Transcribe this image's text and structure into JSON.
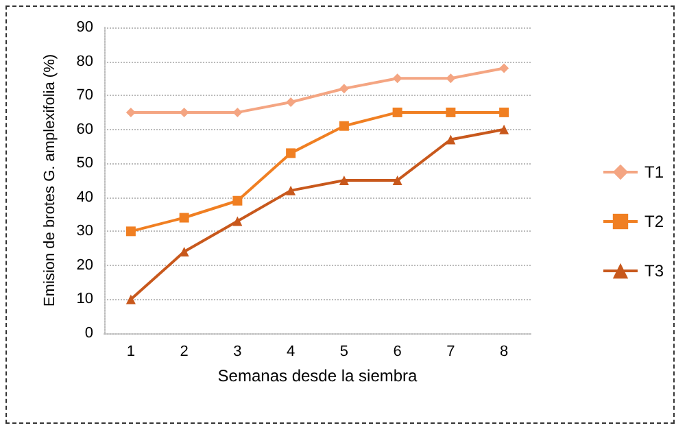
{
  "chart_data": {
    "type": "line",
    "xlabel": "Semanas desde la siembra",
    "ylabel": "Emision de brotes G. amplexifolia (%)",
    "categories": [
      "1",
      "2",
      "3",
      "4",
      "5",
      "6",
      "7",
      "8"
    ],
    "series": [
      {
        "name": "T1",
        "color": "#f4a582",
        "marker": "diamond",
        "values": [
          65,
          65,
          65,
          68,
          72,
          75,
          75,
          78
        ]
      },
      {
        "name": "T2",
        "color": "#f07f22",
        "marker": "square",
        "values": [
          30,
          34,
          39,
          53,
          61,
          65,
          65,
          65
        ]
      },
      {
        "name": "T3",
        "color": "#c8581c",
        "marker": "triangle",
        "values": [
          10,
          24,
          33,
          42,
          45,
          45,
          57,
          60
        ]
      }
    ],
    "ylim": [
      0,
      90
    ],
    "yticks": [
      0,
      10,
      20,
      30,
      40,
      50,
      60,
      70,
      80,
      90
    ],
    "grid": "y",
    "legend": "right",
    "line_style": "solid"
  }
}
